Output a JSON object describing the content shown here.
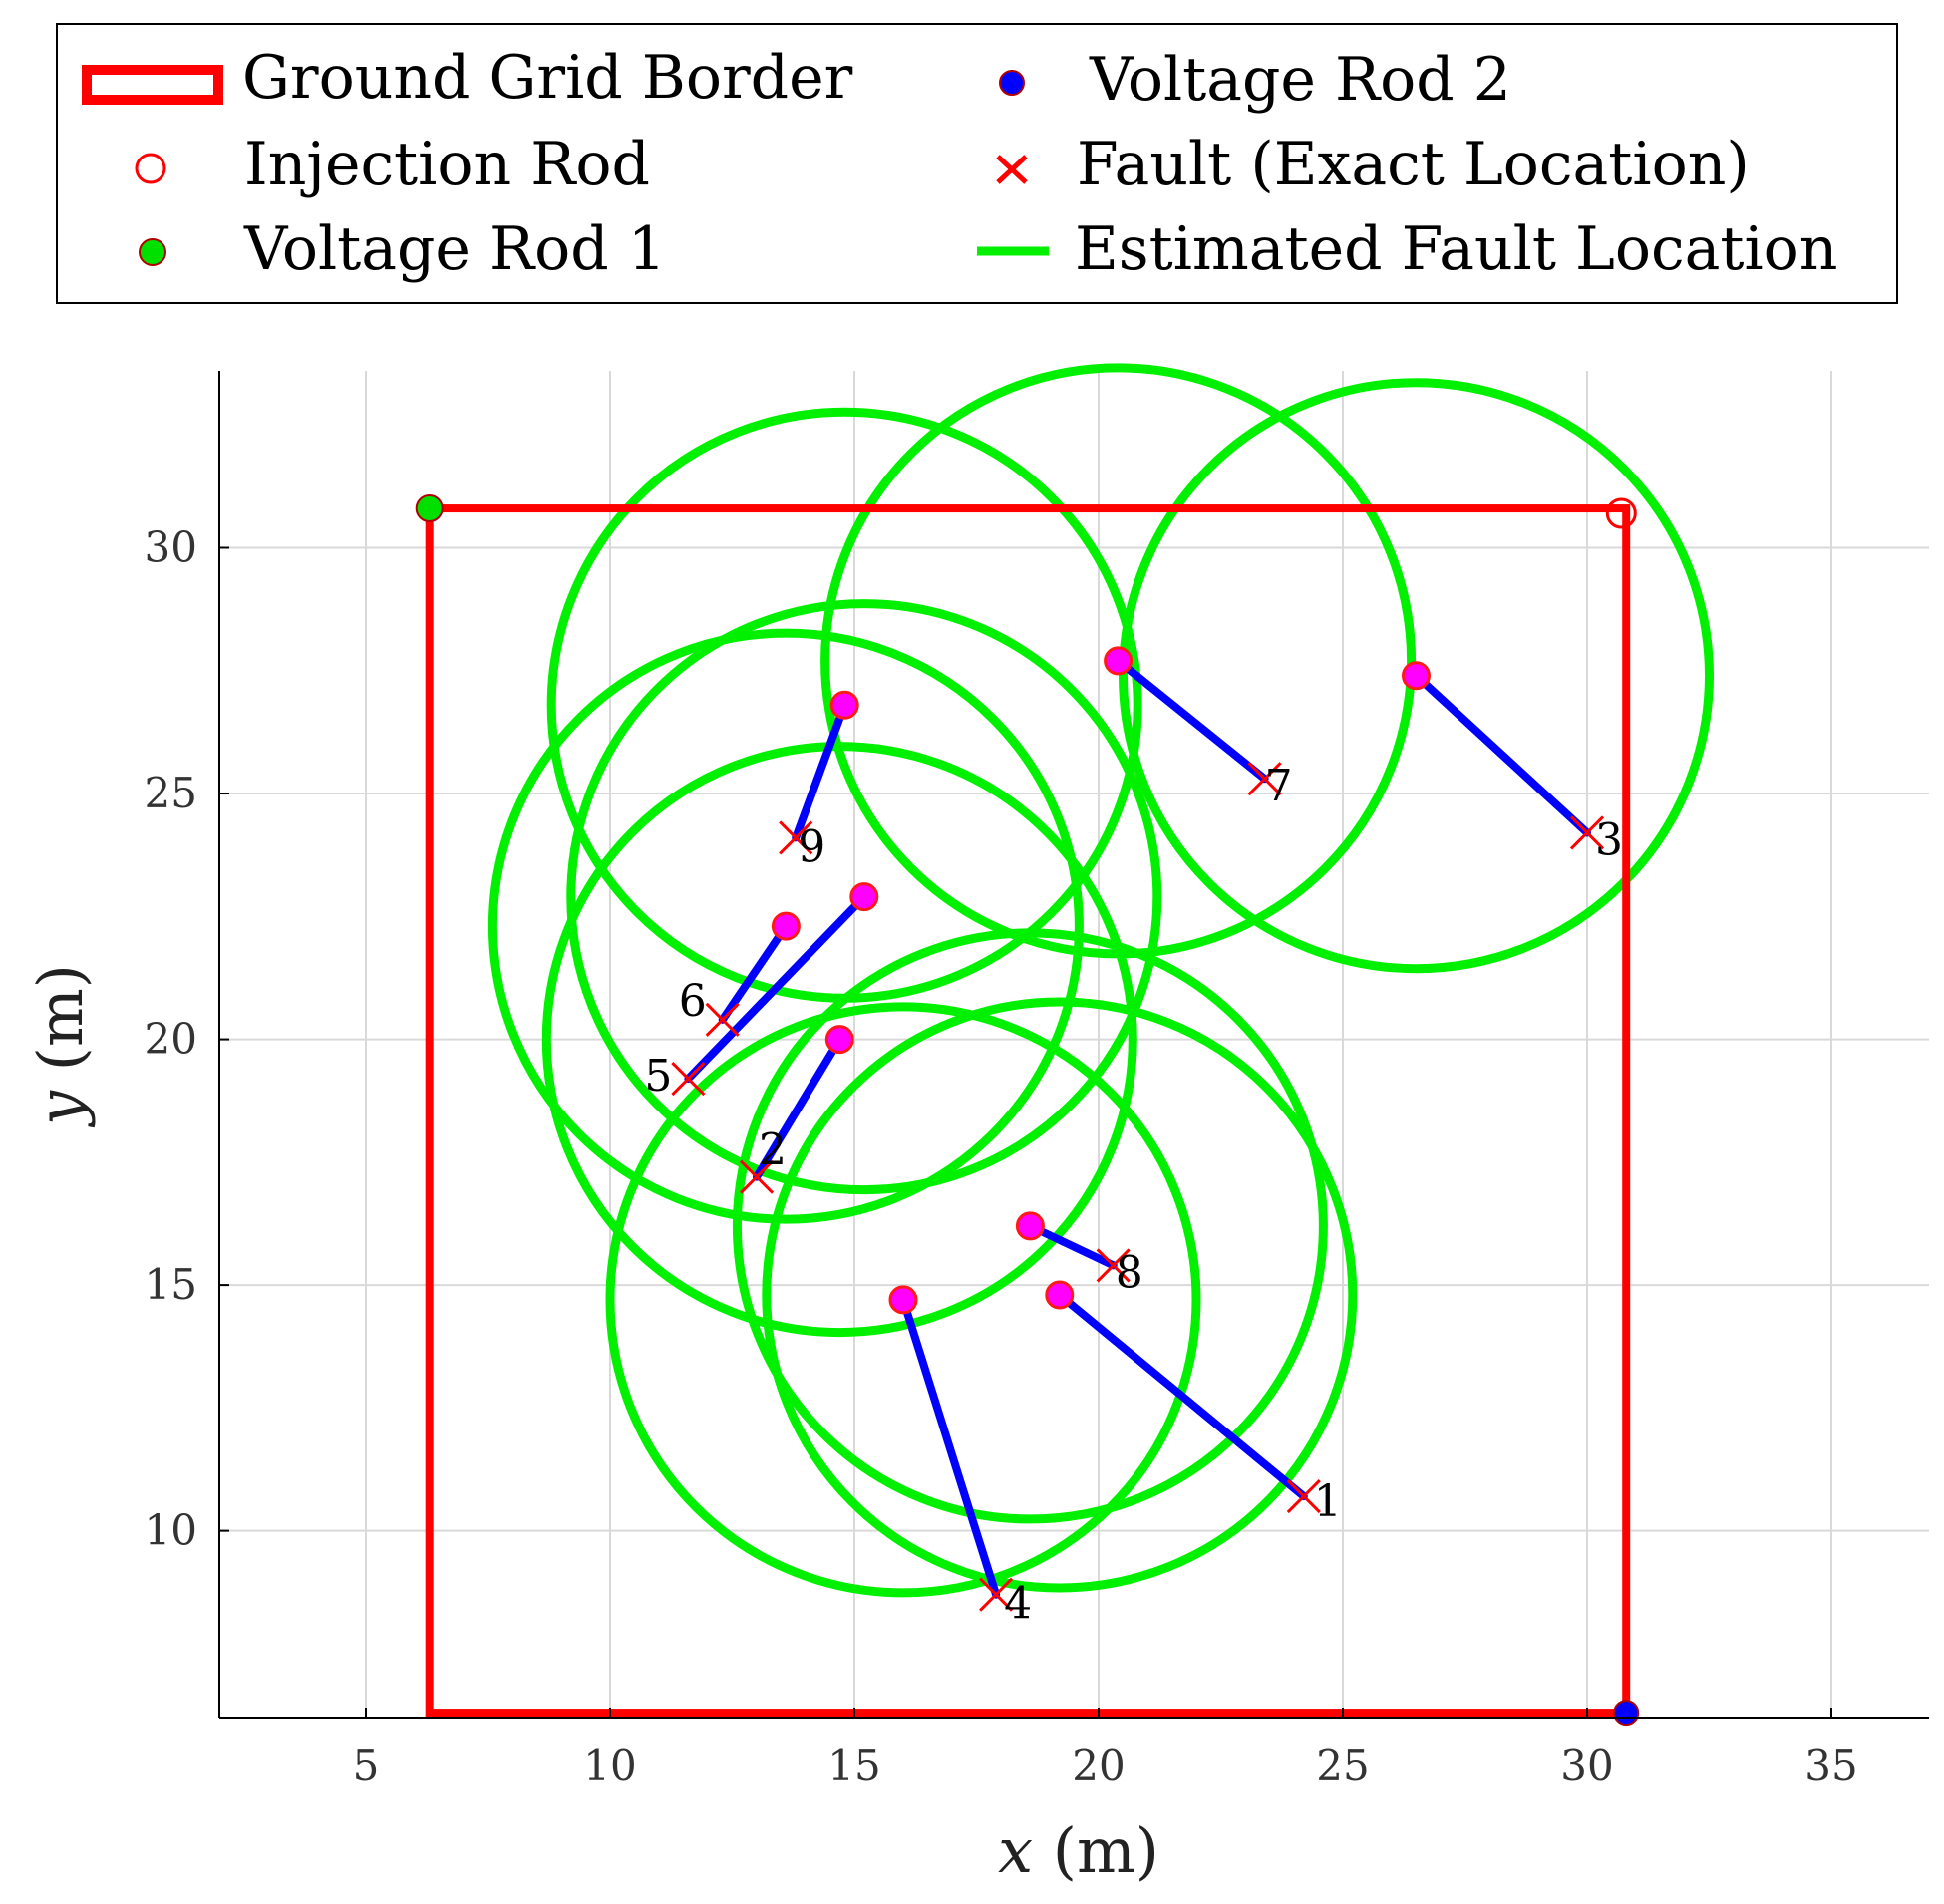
{
  "colors": {
    "border": "#ff0000",
    "injection": "#ff0000",
    "voltage1": "#00e000",
    "voltage2": "#0000ff",
    "fault": "#ff0000",
    "estimate": "#00f000",
    "link": "#0000ff",
    "marker": "#ff00ff",
    "grid": "#d9d9d9"
  },
  "legend": {
    "ground_grid_border": "Ground Grid Border",
    "injection_rod": "Injection Rod",
    "voltage_rod_1": "Voltage Rod 1",
    "voltage_rod_2": "Voltage Rod 2",
    "fault_exact": "Fault (Exact Location)",
    "estimated_fault": "Estimated Fault Location"
  },
  "chart_data": {
    "type": "scatter",
    "title": "",
    "xlabel_var": "x",
    "xlabel_unit": "(m)",
    "ylabel_var": "y",
    "ylabel_unit": "(m)",
    "xlim": [
      2,
      37
    ],
    "ylim": [
      6.2,
      33.6
    ],
    "xticks": [
      5,
      10,
      15,
      20,
      25,
      30,
      35
    ],
    "yticks": [
      10,
      15,
      20,
      25,
      30
    ],
    "grid": true,
    "legend_position": "top",
    "ground_grid_border": {
      "x": [
        6.3,
        30.8
      ],
      "y": [
        6.3,
        30.8
      ]
    },
    "injection_rod": {
      "x": 30.7,
      "y": 30.7
    },
    "voltage_rod_1": {
      "x": 6.3,
      "y": 30.8
    },
    "voltage_rod_2": {
      "x": 30.8,
      "y": 6.3
    },
    "faults": [
      {
        "label": "1",
        "fault": [
          24.2,
          10.7
        ],
        "estimate": [
          19.2,
          14.8
        ],
        "radius": 6.0
      },
      {
        "label": "2",
        "fault": [
          13.0,
          17.2
        ],
        "estimate": [
          14.7,
          20.0
        ],
        "radius": 6.0
      },
      {
        "label": "3",
        "fault": [
          30.0,
          24.2
        ],
        "estimate": [
          26.5,
          27.4
        ],
        "radius": 6.0
      },
      {
        "label": "4",
        "fault": [
          17.9,
          8.7
        ],
        "estimate": [
          16.0,
          14.7
        ],
        "radius": 6.0
      },
      {
        "label": "5",
        "fault": [
          11.6,
          19.2
        ],
        "estimate": [
          15.2,
          22.9
        ],
        "radius": 6.0
      },
      {
        "label": "6",
        "fault": [
          12.3,
          20.4
        ],
        "estimate": [
          13.6,
          22.3
        ],
        "radius": 6.0
      },
      {
        "label": "7",
        "fault": [
          23.4,
          25.3
        ],
        "estimate": [
          20.4,
          27.7
        ],
        "radius": 6.0
      },
      {
        "label": "8",
        "fault": [
          20.3,
          15.4
        ],
        "estimate": [
          18.6,
          16.2
        ],
        "radius": 6.0
      },
      {
        "label": "9",
        "fault": [
          13.8,
          24.1
        ],
        "estimate": [
          14.8,
          26.8
        ],
        "radius": 6.0
      }
    ]
  }
}
